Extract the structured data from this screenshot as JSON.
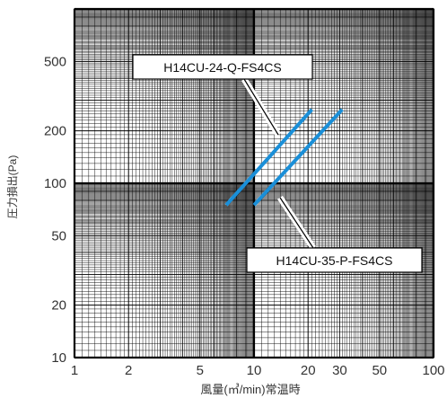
{
  "chart_data": {
    "type": "line",
    "title": "",
    "xlabel": "風量(㎥/min)常温時",
    "ylabel": "圧力損出(Pa)",
    "x_scale": "log",
    "y_scale": "log",
    "xlim": [
      1,
      100
    ],
    "ylim": [
      10,
      1000
    ],
    "x_ticks": [
      {
        "value": 1,
        "label": "1"
      },
      {
        "value": 2,
        "label": "2"
      },
      {
        "value": 5,
        "label": "5"
      },
      {
        "value": 10,
        "label": "10"
      },
      {
        "value": 20,
        "label": "20"
      },
      {
        "value": 30,
        "label": "30"
      },
      {
        "value": 50,
        "label": "50"
      },
      {
        "value": 100,
        "label": "100"
      }
    ],
    "y_ticks": [
      {
        "value": 10,
        "label": "10"
      },
      {
        "value": 20,
        "label": "20"
      },
      {
        "value": 50,
        "label": "50"
      },
      {
        "value": 100,
        "label": "100"
      },
      {
        "value": 200,
        "label": "200"
      },
      {
        "value": 500,
        "label": "500"
      }
    ],
    "grid": true,
    "colors": {
      "line": "#1a8fd8",
      "grid": "#000000",
      "label_border": "#000000"
    },
    "series": [
      {
        "name": "H14CU-24-Q-FS4CS",
        "x": [
          7,
          21
        ],
        "y": [
          75,
          265
        ]
      },
      {
        "name": "H14CU-35-P-FS4CS",
        "x": [
          10,
          31
        ],
        "y": [
          75,
          265
        ]
      }
    ],
    "annotations": [
      {
        "text": "H14CU-24-Q-FS4CS",
        "series": 0
      },
      {
        "text": "H14CU-35-P-FS4CS",
        "series": 1
      }
    ]
  }
}
